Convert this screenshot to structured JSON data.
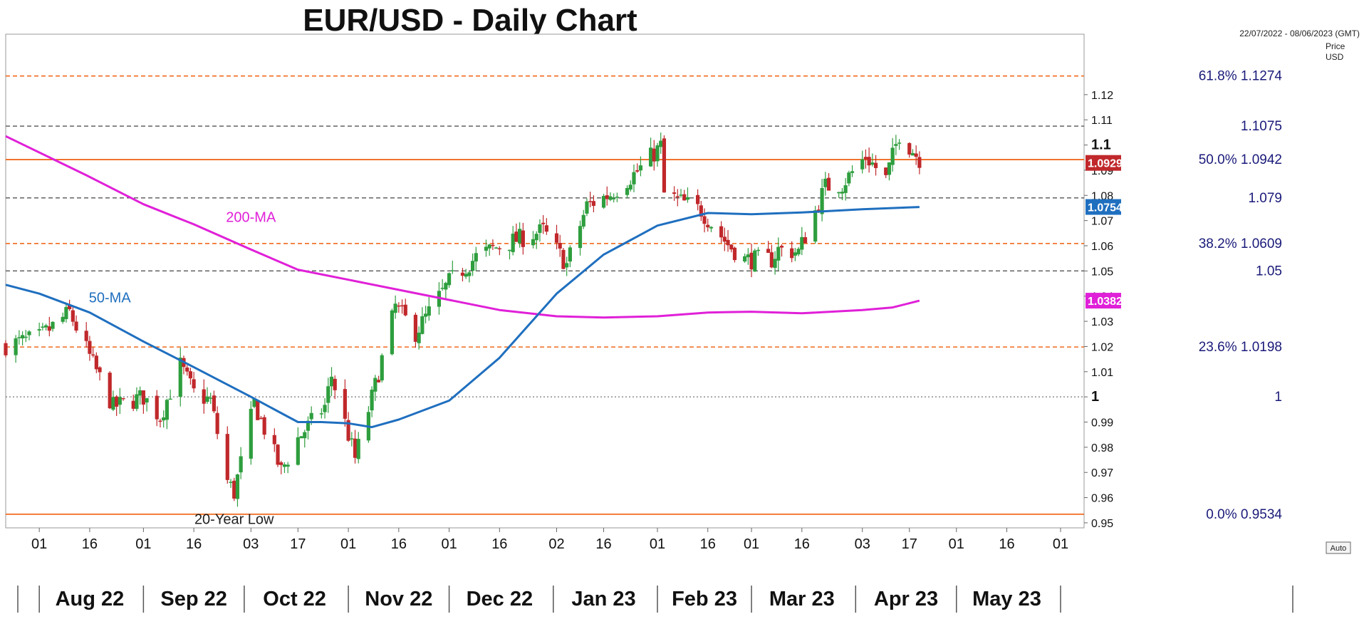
{
  "title": "EUR/USD - Daily Chart",
  "date_range": "22/07/2022 - 08/06/2023 (GMT)",
  "price_axis_label_line1": "Price",
  "price_axis_label_line2": "USD",
  "auto_button": "Auto",
  "colors": {
    "up": "#2e9e3e",
    "down": "#c0282b",
    "ma50": "#1f6fbf",
    "ma200": "#e020d8",
    "fib": "#f06a1f",
    "level_grey": "#555555",
    "text_blue": "#1a1a7a"
  },
  "chart_data": {
    "type": "candlestick",
    "ylim": [
      0.948,
      1.144
    ],
    "x_range": [
      "2022-07-22",
      "2023-06-08"
    ],
    "y_ticks": [
      "0.95",
      "0.96",
      "0.97",
      "0.98",
      "0.99",
      "1",
      "1.01",
      "1.02",
      "1.03",
      "1.04",
      "1.05",
      "1.06",
      "1.07",
      "1.08",
      "1.09",
      "1.1",
      "1.11",
      "1.12"
    ],
    "x_day_ticks": [
      {
        "date": "2022-08-01",
        "label": "01"
      },
      {
        "date": "2022-08-16",
        "label": "16"
      },
      {
        "date": "2022-09-01",
        "label": "01"
      },
      {
        "date": "2022-09-16",
        "label": "16"
      },
      {
        "date": "2022-10-03",
        "label": "03"
      },
      {
        "date": "2022-10-17",
        "label": "17"
      },
      {
        "date": "2022-11-01",
        "label": "01"
      },
      {
        "date": "2022-11-16",
        "label": "16"
      },
      {
        "date": "2022-12-01",
        "label": "01"
      },
      {
        "date": "2022-12-16",
        "label": "16"
      },
      {
        "date": "2023-01-02",
        "label": "02"
      },
      {
        "date": "2023-01-16",
        "label": "16"
      },
      {
        "date": "2023-02-01",
        "label": "01"
      },
      {
        "date": "2023-02-16",
        "label": "16"
      },
      {
        "date": "2023-03-01",
        "label": "01"
      },
      {
        "date": "2023-03-16",
        "label": "16"
      },
      {
        "date": "2023-04-03",
        "label": "03"
      },
      {
        "date": "2023-04-17",
        "label": "17"
      },
      {
        "date": "2023-05-01",
        "label": "01"
      },
      {
        "date": "2023-05-16",
        "label": "16"
      },
      {
        "date": "2023-06-01",
        "label": "01"
      }
    ],
    "x_month_ticks": [
      {
        "date": "2022-08-16",
        "label": "Aug 22"
      },
      {
        "date": "2022-09-16",
        "label": "Sep 22"
      },
      {
        "date": "2022-10-16",
        "label": "Oct 22"
      },
      {
        "date": "2022-11-16",
        "label": "Nov 22"
      },
      {
        "date": "2022-12-16",
        "label": "Dec 22"
      },
      {
        "date": "2023-01-16",
        "label": "Jan 23"
      },
      {
        "date": "2023-02-15",
        "label": "Feb 23"
      },
      {
        "date": "2023-03-16",
        "label": "Mar 23"
      },
      {
        "date": "2023-04-16",
        "label": "Apr 23"
      },
      {
        "date": "2023-05-16",
        "label": "May 23"
      }
    ],
    "horizontal_levels": [
      {
        "price": 1.1274,
        "label": "61.8%   1.1274",
        "style": "fib"
      },
      {
        "price": 1.1075,
        "label": "1.1075",
        "style": "grey"
      },
      {
        "price": 1.0942,
        "label": "50.0%   1.0942",
        "style": "fib-solid"
      },
      {
        "price": 1.079,
        "label": "1.079",
        "style": "grey"
      },
      {
        "price": 1.0609,
        "label": "38.2%   1.0609",
        "style": "fib"
      },
      {
        "price": 1.05,
        "label": "1.05",
        "style": "grey"
      },
      {
        "price": 1.0198,
        "label": "23.6%   1.0198",
        "style": "fib"
      },
      {
        "price": 1.0,
        "label": "1",
        "style": "grey-dot"
      },
      {
        "price": 0.9534,
        "label": "0.0%   0.9534",
        "style": "fib-solid"
      }
    ],
    "series": [
      {
        "name": "200-MA",
        "points": [
          [
            "2022-07-22",
            1.1035
          ],
          [
            "2022-08-15",
            1.088
          ],
          [
            "2022-09-01",
            1.0765
          ],
          [
            "2022-09-16",
            1.0685
          ],
          [
            "2022-10-03",
            1.0585
          ],
          [
            "2022-10-17",
            1.0505
          ],
          [
            "2022-11-01",
            1.0465
          ],
          [
            "2022-11-16",
            1.0425
          ],
          [
            "2022-12-01",
            1.0385
          ],
          [
            "2022-12-16",
            1.0345
          ],
          [
            "2023-01-02",
            1.032
          ],
          [
            "2023-01-16",
            1.0315
          ],
          [
            "2023-02-01",
            1.032
          ],
          [
            "2023-02-16",
            1.0335
          ],
          [
            "2023-03-01",
            1.0338
          ],
          [
            "2023-03-16",
            1.0332
          ],
          [
            "2023-04-03",
            1.0345
          ],
          [
            "2023-04-12",
            1.0355
          ],
          [
            "2023-04-20",
            1.0382
          ]
        ]
      },
      {
        "name": "50-MA",
        "points": [
          [
            "2022-07-22",
            1.0445
          ],
          [
            "2022-08-01",
            1.041
          ],
          [
            "2022-08-16",
            1.0335
          ],
          [
            "2022-09-01",
            1.022
          ],
          [
            "2022-09-16",
            1.0118
          ],
          [
            "2022-10-03",
            1.0
          ],
          [
            "2022-10-17",
            0.99
          ],
          [
            "2022-10-24",
            0.99
          ],
          [
            "2022-11-01",
            0.9895
          ],
          [
            "2022-11-08",
            0.988
          ],
          [
            "2022-11-16",
            0.991
          ],
          [
            "2022-12-01",
            0.9985
          ],
          [
            "2022-12-16",
            1.0155
          ],
          [
            "2023-01-02",
            1.041
          ],
          [
            "2023-01-16",
            1.0565
          ],
          [
            "2023-02-01",
            1.068
          ],
          [
            "2023-02-16",
            1.073
          ],
          [
            "2023-03-01",
            1.0725
          ],
          [
            "2023-03-16",
            1.0732
          ],
          [
            "2023-04-03",
            1.0745
          ],
          [
            "2023-04-20",
            1.0754
          ]
        ]
      }
    ],
    "ohlc_anchors": [
      [
        "2022-07-22",
        1.0205
      ],
      [
        "2022-08-01",
        1.0235
      ],
      [
        "2022-08-10",
        1.0335
      ],
      [
        "2022-08-16",
        1.016
      ],
      [
        "2022-08-23",
        0.996
      ],
      [
        "2022-09-01",
        1.0
      ],
      [
        "2022-09-06",
        0.992
      ],
      [
        "2022-09-12",
        1.0125
      ],
      [
        "2022-09-16",
        1.0015
      ],
      [
        "2022-09-21",
        0.9985
      ],
      [
        "2022-09-26",
        0.9665
      ],
      [
        "2022-09-28",
        0.962
      ],
      [
        "2022-10-04",
        0.9975
      ],
      [
        "2022-10-12",
        0.9705
      ],
      [
        "2022-10-17",
        0.9835
      ],
      [
        "2022-10-25",
        0.9963
      ],
      [
        "2022-10-27",
        1.0085
      ],
      [
        "2022-11-03",
        0.9755
      ],
      [
        "2022-11-09",
        1.0045
      ],
      [
        "2022-11-15",
        1.036
      ],
      [
        "2022-11-21",
        1.0255
      ],
      [
        "2022-12-01",
        1.0455
      ],
      [
        "2022-12-09",
        1.0555
      ],
      [
        "2022-12-16",
        1.06
      ],
      [
        "2022-12-29",
        1.066
      ],
      [
        "2023-01-05",
        1.0525
      ],
      [
        "2023-01-11",
        1.076
      ],
      [
        "2023-01-18",
        1.0805
      ],
      [
        "2023-01-26",
        1.0895
      ],
      [
        "2023-02-02",
        1.0995
      ],
      [
        "2023-02-03",
        1.0805
      ],
      [
        "2023-02-14",
        1.074
      ],
      [
        "2023-02-22",
        1.0605
      ],
      [
        "2023-02-27",
        1.0545
      ],
      [
        "2023-03-07",
        1.0545
      ],
      [
        "2023-03-09",
        1.0585
      ],
      [
        "2023-03-15",
        1.0575
      ],
      [
        "2023-03-23",
        1.0835
      ],
      [
        "2023-03-28",
        1.0845
      ],
      [
        "2023-04-04",
        1.0955
      ],
      [
        "2023-04-10",
        1.0865
      ],
      [
        "2023-04-14",
        1.1045
      ],
      [
        "2023-04-20",
        1.0945
      ]
    ],
    "last_price_labels": [
      {
        "price": 1.0929,
        "label": "1.0929",
        "color": "#c0282b"
      },
      {
        "price": 1.0754,
        "label": "1.0754",
        "color": "#1f6fbf"
      },
      {
        "price": 1.0382,
        "label": "1.0382",
        "color": "#e020d8"
      }
    ],
    "annotations": [
      {
        "text": "200-MA",
        "date": "2022-10-03",
        "price": 1.0695,
        "color": "#e020d8"
      },
      {
        "text": "50-MA",
        "date": "2022-08-22",
        "price": 1.0375,
        "color": "#1f6fbf"
      },
      {
        "text": "20-Year Low",
        "date": "2022-09-28",
        "price": 0.9495,
        "color": "#222222"
      }
    ]
  }
}
